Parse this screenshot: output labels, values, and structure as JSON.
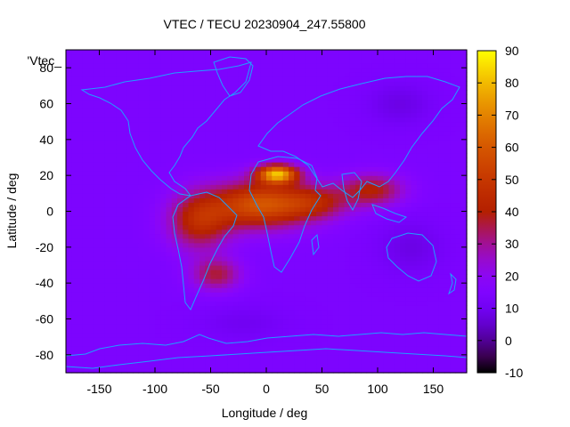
{
  "chart_data": {
    "type": "heatmap",
    "title": "VTEC / TECU 20230904_247.55800",
    "xlabel": "Longitude / deg",
    "ylabel": "Latitude / deg",
    "legend_entry": "'Vtec_",
    "xlim": [
      -180,
      180
    ],
    "ylim": [
      -90,
      90
    ],
    "x_ticks": [
      -150,
      -100,
      -50,
      0,
      50,
      100,
      150
    ],
    "y_ticks": [
      -80,
      -60,
      -40,
      -20,
      0,
      20,
      40,
      60,
      80
    ],
    "colorbar": {
      "min": -10,
      "max": 90,
      "ticks": [
        -10,
        0,
        10,
        20,
        30,
        40,
        50,
        60,
        70,
        80,
        90
      ]
    },
    "grid_resolution": {
      "lon_step": 5,
      "lat_step": 2.5
    },
    "background_level": 14,
    "features": [
      {
        "lon": 10,
        "lat": 21,
        "sigma_lon": 18,
        "sigma_lat": 5,
        "amp": 62
      },
      {
        "lon": -5,
        "lat": 4,
        "sigma_lon": 42,
        "sigma_lat": 13,
        "amp": 44
      },
      {
        "lon": -60,
        "lat": -5,
        "sigma_lon": 28,
        "sigma_lat": 16,
        "amp": 30
      },
      {
        "lon": -45,
        "lat": -35,
        "sigma_lon": 22,
        "sigma_lat": 9,
        "amp": 22
      },
      {
        "lon": 45,
        "lat": 5,
        "sigma_lon": 30,
        "sigma_lat": 10,
        "amp": 22
      },
      {
        "lon": 95,
        "lat": 12,
        "sigma_lon": 28,
        "sigma_lat": 9,
        "amp": 26
      },
      {
        "lon": 130,
        "lat": -20,
        "sigma_lon": 30,
        "sigma_lat": 15,
        "amp": -6
      },
      {
        "lon": 120,
        "lat": 60,
        "sigma_lon": 30,
        "sigma_lat": 12,
        "amp": -6
      },
      {
        "lon": -20,
        "lat": -62,
        "sigma_lon": 40,
        "sigma_lat": 10,
        "amp": -4
      }
    ],
    "palette": "gnuplot-pm3d-rgbformulae-7-5-15"
  },
  "colors": {
    "coastline": "#1ea0ff",
    "frame": "#000000"
  }
}
